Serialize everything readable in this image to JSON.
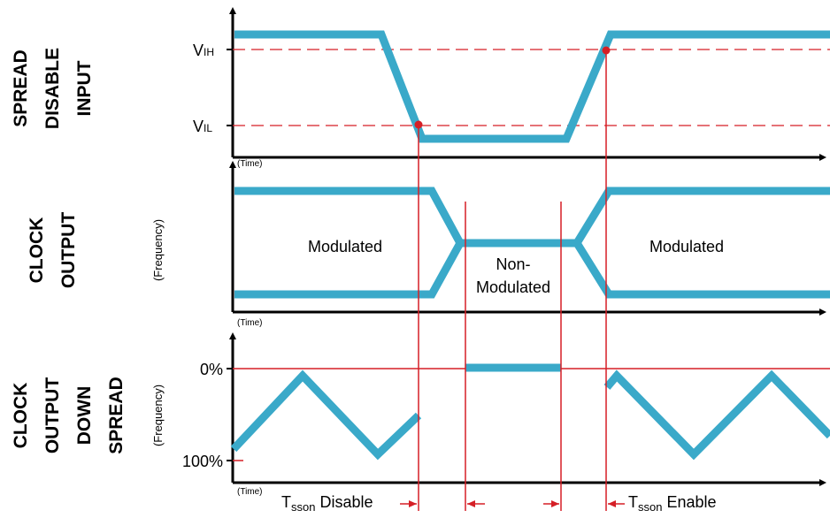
{
  "panels": {
    "spread_disable": {
      "title_lines": [
        "SPREAD",
        "DISABLE",
        "INPUT"
      ],
      "vih_main": "V",
      "vih_sub": "IH",
      "vil_main": "V",
      "vil_sub": "IL",
      "time_label": "(Time)"
    },
    "clock_output": {
      "title_lines": [
        "CLOCK",
        "OUTPUT"
      ],
      "y_label": "(Frequency)",
      "time_label": "(Time)",
      "left_region": "Modulated",
      "middle_region_line1": "Non-",
      "middle_region_line2": "Modulated",
      "right_region": "Modulated"
    },
    "down_spread": {
      "title_lines": [
        "CLOCK",
        "OUTPUT",
        "DOWN",
        "SPREAD"
      ],
      "y_label": "(Frequency)",
      "time_label": "(Time)",
      "tick_top": "0%",
      "tick_bottom": "100%"
    }
  },
  "timing": {
    "disable_main": "T",
    "disable_sub": "sson",
    "disable_rest": " Disable",
    "enable_main": "T",
    "enable_sub": "sson",
    "enable_rest": " Enable"
  },
  "colors": {
    "waveform": "#3aa9c9",
    "marker": "#d51f26",
    "axis": "#000000"
  }
}
